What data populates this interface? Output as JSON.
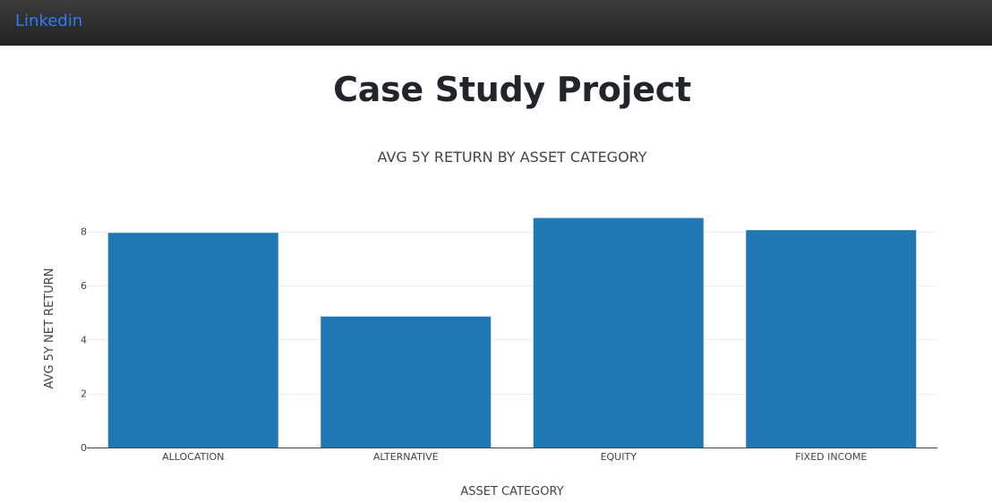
{
  "navbar": {
    "link_label": "Linkedin"
  },
  "page": {
    "title": "Case Study Project"
  },
  "chart_data": {
    "type": "bar",
    "title": "AVG 5Y RETURN BY ASSET CATEGORY",
    "xlabel": "ASSET CATEGORY",
    "ylabel": "AVG 5Y NET RETURN",
    "categories": [
      "ALLOCATION",
      "ALTERNATIVE",
      "EQUITY",
      "FIXED INCOME"
    ],
    "values": [
      7.95,
      4.85,
      8.5,
      8.05
    ],
    "yticks": [
      0,
      2,
      4,
      6,
      8
    ],
    "ylim": [
      0,
      8.95
    ],
    "grid": true,
    "bar_color": "#1f77b4"
  }
}
